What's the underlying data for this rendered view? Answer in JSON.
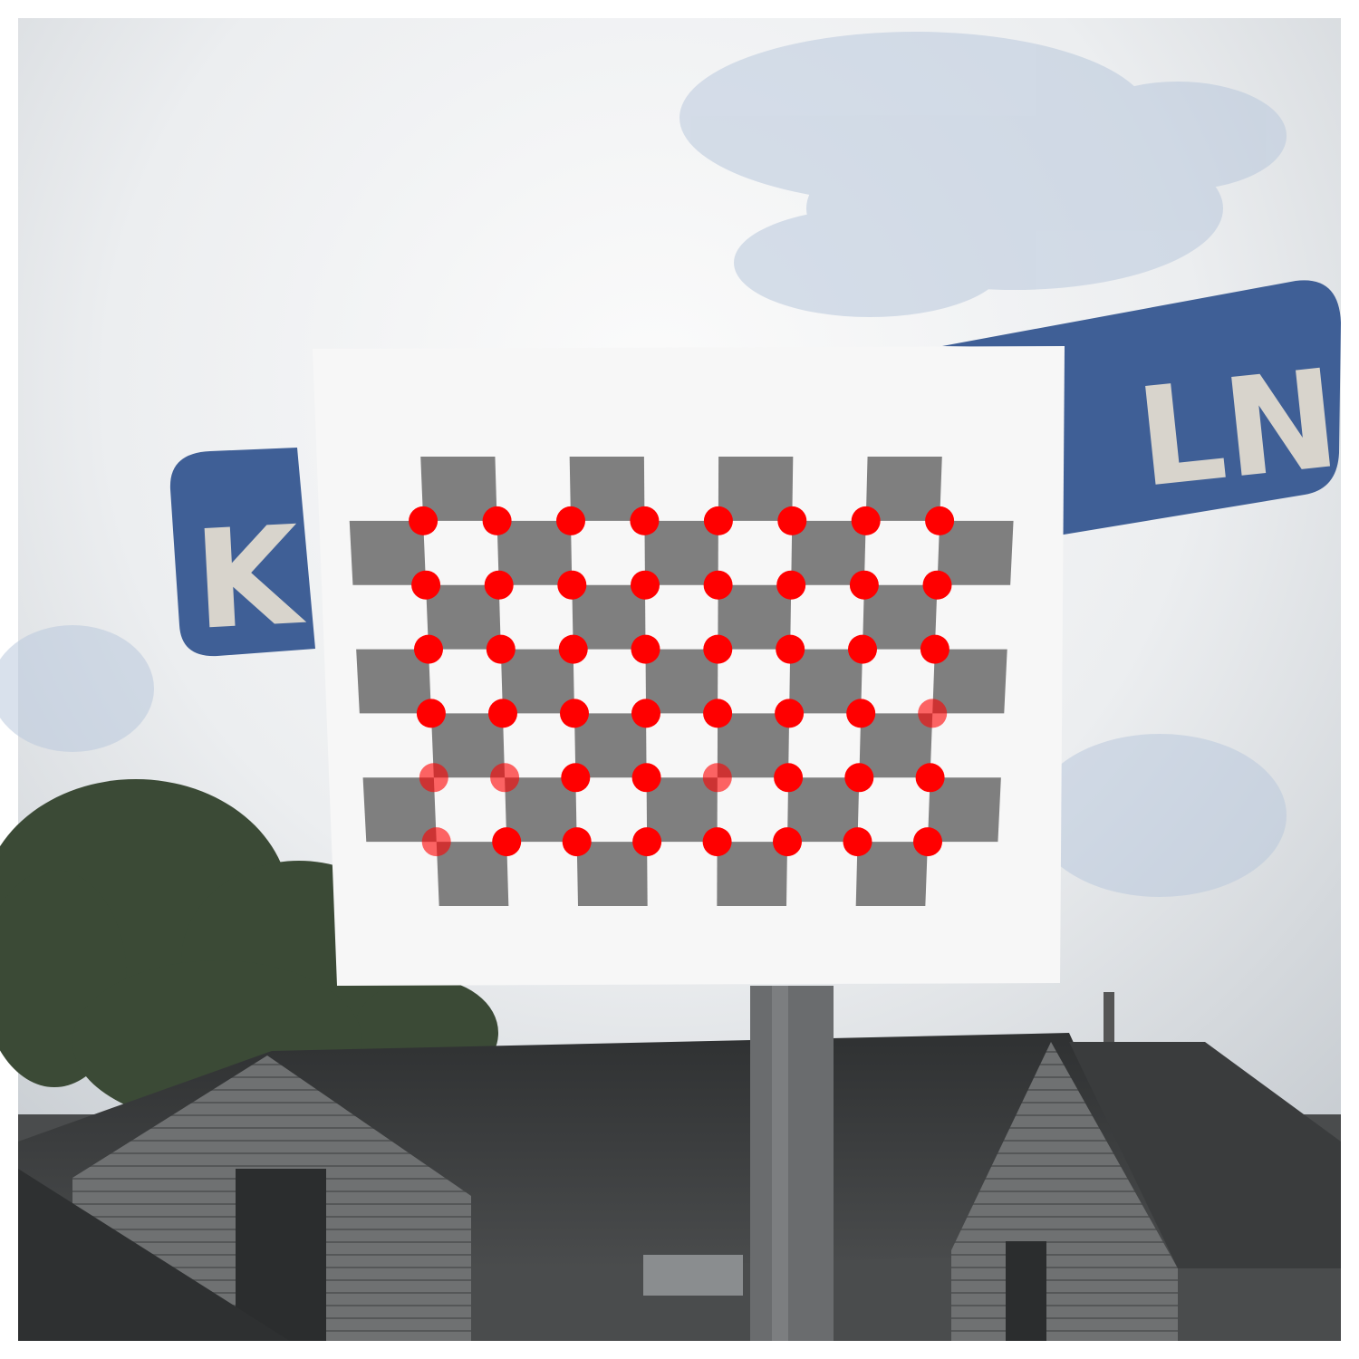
{
  "signs": {
    "left_text": "K",
    "right_text": "LN"
  },
  "colors": {
    "sign_blue": "#3f5f96",
    "sign_letter": "#d8d4cc",
    "sky_light": "#f4f5f6",
    "sky_blue_patch": "#b9c8dc",
    "checker_dark": "#7f7f7f",
    "paper": "#f7f7f7",
    "corner_marker": "#ff0000",
    "tree": "#3b4a36",
    "roof": "#404040",
    "wall": "#767676"
  },
  "checkerboard": {
    "squares_cols": 9,
    "squares_rows": 7,
    "inner_corner_cols": 8,
    "inner_corner_rows": 6
  }
}
